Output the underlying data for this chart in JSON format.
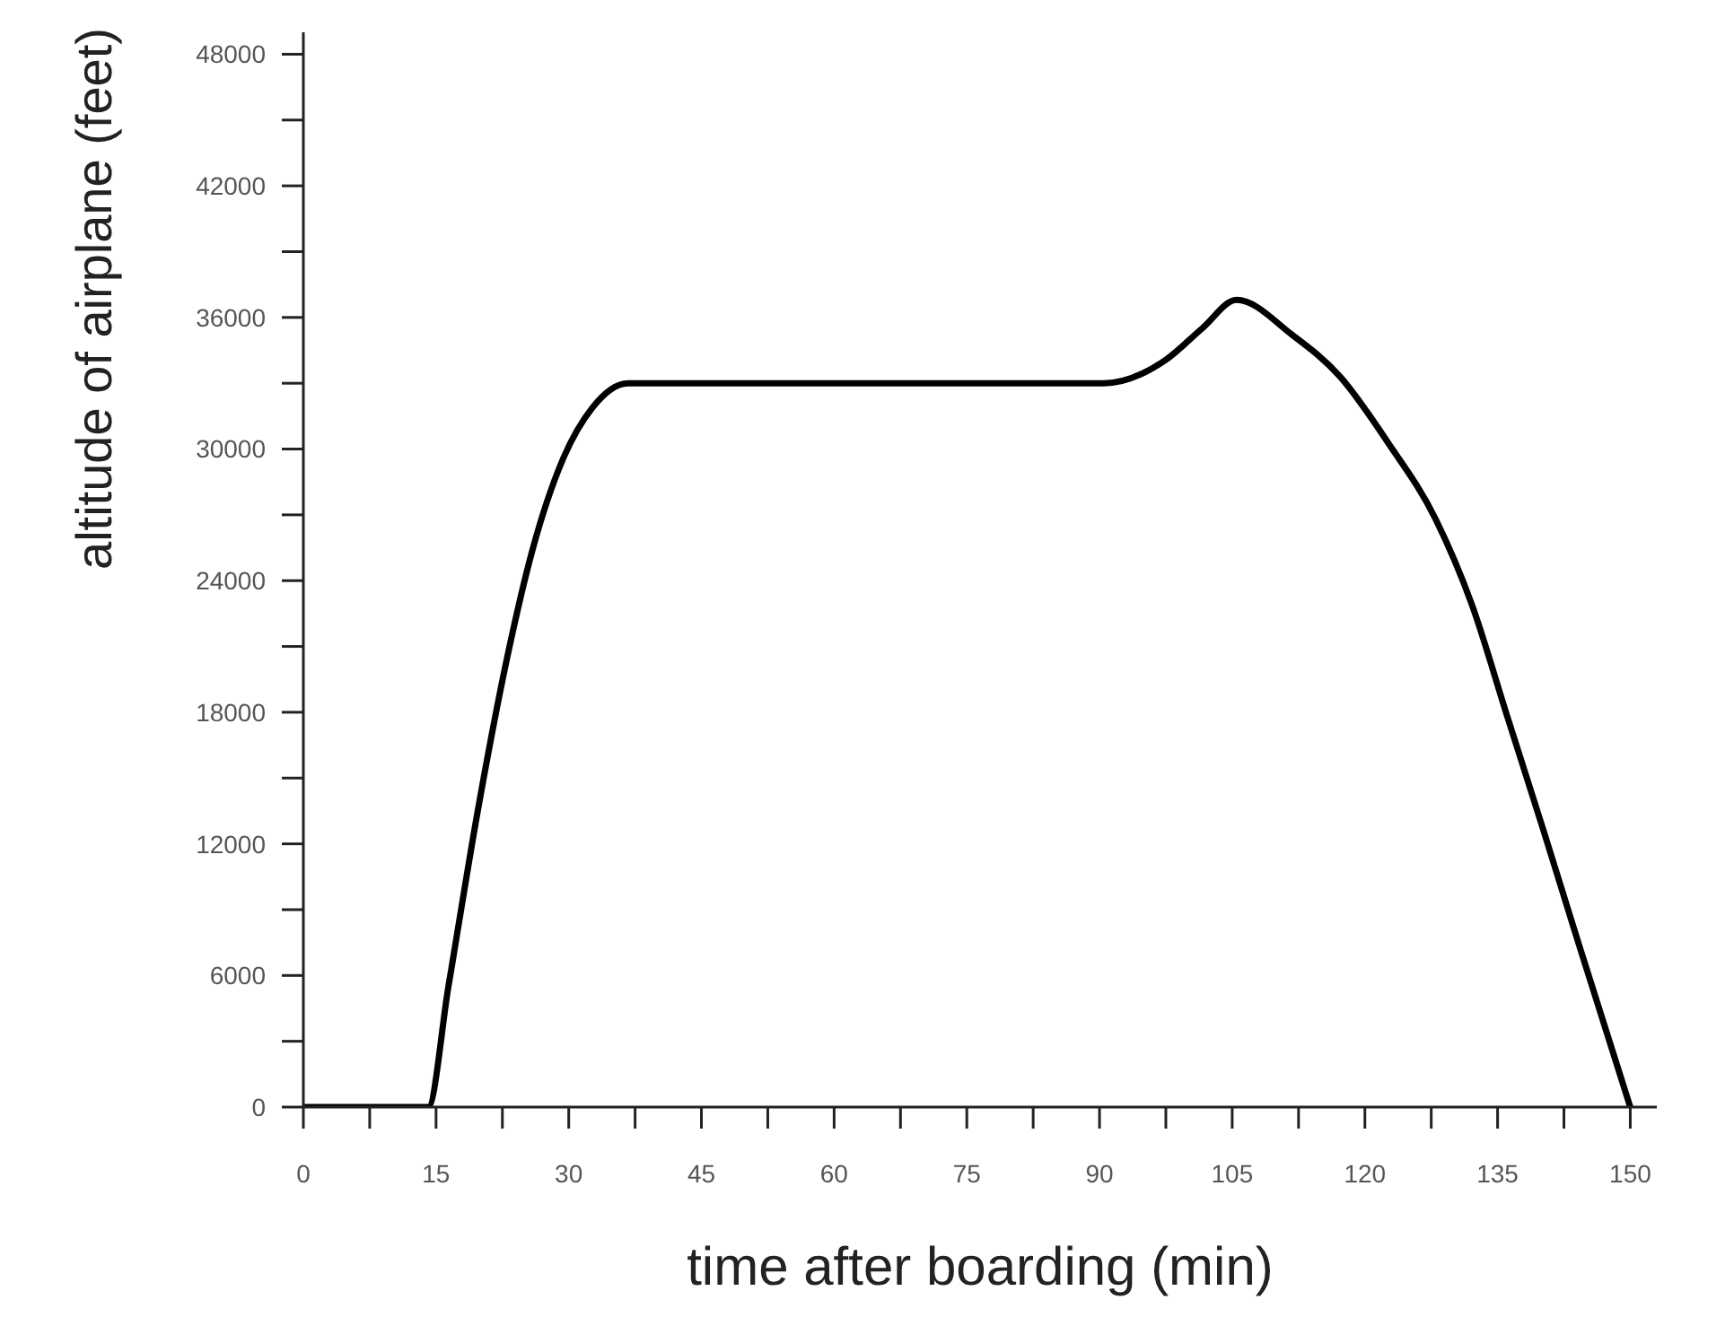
{
  "chart_data": {
    "type": "line",
    "xlabel": "time after boarding (min)",
    "ylabel": "altitude of airplane (feet)",
    "x": [
      0,
      14.1,
      16.4,
      19.8,
      23.2,
      25.9,
      29.3,
      32.7,
      36.7,
      90.5,
      97.6,
      101.6,
      105.5,
      111.8,
      117.2,
      122.6,
      128.0,
      132.1,
      136.1,
      140.2,
      144.2,
      150
    ],
    "series": [
      {
        "color": "#000000",
        "values": [
          0,
          0,
          5500,
          13700,
          20800,
          25400,
          29500,
          31900,
          33000,
          33000,
          34100,
          35500,
          36800,
          35200,
          33300,
          30300,
          26800,
          22900,
          17800,
          12600,
          7400,
          0
        ]
      }
    ],
    "marker": "none",
    "xlim": [
      0,
      153
    ],
    "ylim": [
      0,
      49000
    ],
    "xticks": [
      0,
      {
        "value": 7.5,
        "label": null
      },
      15,
      {
        "value": 22.5,
        "label": null
      },
      30,
      {
        "value": 37.5,
        "label": null
      },
      45,
      {
        "value": 52.5,
        "label": null
      },
      60,
      {
        "value": 67.5,
        "label": null
      },
      75,
      {
        "value": 82.5,
        "label": null
      },
      90,
      {
        "value": 97.5,
        "label": null
      },
      105,
      {
        "value": 112.5,
        "label": null
      },
      120,
      {
        "value": 127.5,
        "label": null
      },
      135,
      {
        "value": 142.5,
        "label": null
      },
      150
    ],
    "yticks": [
      0,
      {
        "value": 3000,
        "label": null
      },
      6000,
      {
        "value": 9000,
        "label": null
      },
      12000,
      {
        "value": 15000,
        "label": null
      },
      18000,
      {
        "value": 21000,
        "label": null
      },
      24000,
      {
        "value": 27000,
        "label": null
      },
      30000,
      {
        "value": 33000,
        "label": null
      },
      36000,
      {
        "value": 39000,
        "label": null
      },
      42000,
      {
        "value": 45000,
        "label": null
      },
      48000
    ]
  }
}
